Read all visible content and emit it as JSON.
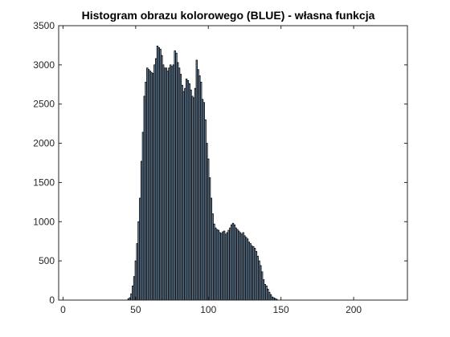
{
  "chart_data": {
    "type": "bar",
    "title": "Histogram obrazu kolorowego (BLUE) - własna funkcja",
    "xlabel": "",
    "ylabel": "",
    "xlim": [
      -3,
      237
    ],
    "ylim": [
      0,
      3500
    ],
    "xticks": [
      0,
      50,
      100,
      150,
      200
    ],
    "yticks": [
      0,
      500,
      1000,
      1500,
      2000,
      2500,
      3000,
      3500
    ],
    "grid": false,
    "bar_color": "#8aaed0",
    "edge_color": "#000000",
    "start_bin": 45,
    "values": [
      15,
      30,
      80,
      180,
      300,
      500,
      720,
      1000,
      1300,
      1770,
      2140,
      2600,
      2780,
      2960,
      2940,
      2920,
      2900,
      2890,
      3000,
      3080,
      3240,
      3220,
      3200,
      3120,
      3000,
      2960,
      2960,
      2920,
      2960,
      3000,
      2980,
      3000,
      3180,
      3150,
      3030,
      2960,
      2880,
      2740,
      2660,
      2700,
      2820,
      2800,
      2760,
      2680,
      2600,
      2580,
      2700,
      3060,
      2940,
      2860,
      2780,
      2560,
      2520,
      2300,
      2000,
      1800,
      1560,
      1300,
      1100,
      970,
      920,
      900,
      890,
      860,
      850,
      870,
      880,
      840,
      860,
      890,
      920,
      960,
      980,
      960,
      920,
      900,
      880,
      860,
      840,
      860,
      820,
      800,
      780,
      740,
      720,
      690,
      680,
      660,
      620,
      560,
      500,
      440,
      360,
      260,
      200,
      180,
      140,
      100,
      70,
      40,
      30,
      20,
      10
    ]
  }
}
